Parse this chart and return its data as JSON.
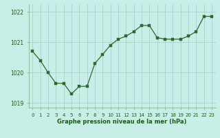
{
  "x": [
    0,
    1,
    2,
    3,
    4,
    5,
    6,
    7,
    8,
    9,
    10,
    11,
    12,
    13,
    14,
    15,
    16,
    17,
    18,
    19,
    20,
    21,
    22,
    23
  ],
  "y": [
    1020.7,
    1020.4,
    1020.0,
    1019.65,
    1019.65,
    1019.3,
    1019.55,
    1019.55,
    1020.3,
    1020.6,
    1020.9,
    1021.1,
    1021.2,
    1021.35,
    1021.55,
    1021.55,
    1021.15,
    1021.1,
    1021.1,
    1021.1,
    1021.2,
    1021.35,
    1021.85,
    1021.85
  ],
  "line_color": "#2d6a2d",
  "marker_color": "#2d6a2d",
  "bg_color": "#c8eee8",
  "grid_color": "#9ecece",
  "xlabel": "Graphe pression niveau de la mer (hPa)",
  "xlabel_color": "#1a5c1a",
  "tick_color": "#1a5c1a",
  "ylim": [
    1018.85,
    1022.25
  ],
  "yticks": [
    1019,
    1020,
    1021,
    1022
  ],
  "xlim": [
    -0.5,
    23.5
  ],
  "xticks": [
    0,
    1,
    2,
    3,
    4,
    5,
    6,
    7,
    8,
    9,
    10,
    11,
    12,
    13,
    14,
    15,
    16,
    17,
    18,
    19,
    20,
    21,
    22,
    23
  ],
  "spine_color": "#7aaa7a"
}
